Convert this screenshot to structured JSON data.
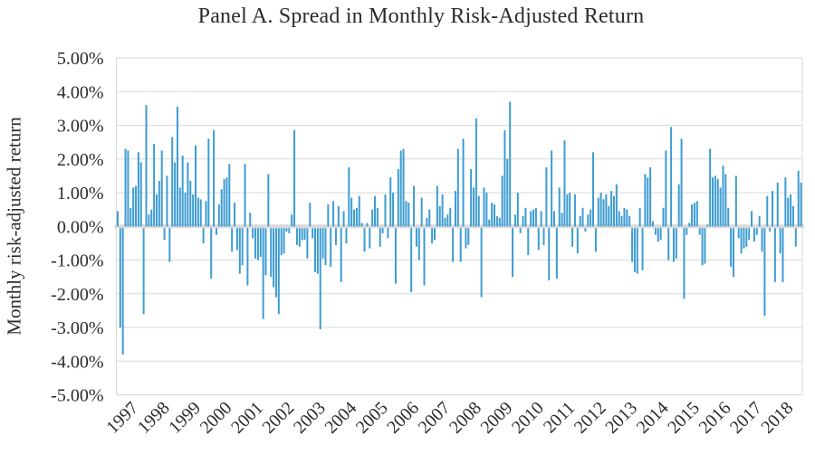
{
  "title": "Panel A. Spread in Monthly Risk-Adjusted Return",
  "chart_data": {
    "type": "bar",
    "title": "Panel A. Spread in Monthly Risk-Adjusted Return",
    "xlabel": "",
    "ylabel": "Monthly risk-adjusted return",
    "unit": "percent",
    "ylim": [
      -5,
      5
    ],
    "y_tick_step": 1,
    "y_tick_labels": [
      "5.00%",
      "4.00%",
      "3.00%",
      "2.00%",
      "1.00%",
      "0.00%",
      "-1.00%",
      "-2.00%",
      "-3.00%",
      "-4.00%",
      "-5.00%"
    ],
    "grid": true,
    "legend": false,
    "bar_color": "#3E9CD1",
    "grid_color": "#D9D9D9",
    "axis_color": "#D9D9D9",
    "text_color": "#2B2B2B",
    "x_tick_labels": [
      "1997",
      "1998",
      "1999",
      "2000",
      "2001",
      "2002",
      "2003",
      "2004",
      "2005",
      "2006",
      "2007",
      "2008",
      "2009",
      "2010",
      "2011",
      "2012",
      "2013",
      "2014",
      "2015",
      "2016",
      "2017",
      "2018"
    ],
    "series_name": "Monthly risk-adjusted return spread (%)",
    "monthly_values_by_year": [
      {
        "year": "1997",
        "values": [
          0.45,
          -2.95,
          -3.75,
          2.3,
          2.25,
          0.55,
          1.15,
          1.2,
          2.2,
          1.9,
          -2.55,
          3.6
        ]
      },
      {
        "year": "1998",
        "values": [
          0.35,
          0.5,
          2.45,
          0.95,
          1.35,
          2.25,
          -0.35,
          1.5,
          -1.0,
          2.65,
          1.9,
          3.55
        ]
      },
      {
        "year": "1999",
        "values": [
          1.15,
          2.1,
          1.0,
          1.9,
          1.35,
          0.95,
          2.4,
          0.85,
          0.8,
          -0.45,
          0.75,
          2.6
        ]
      },
      {
        "year": "2000",
        "values": [
          -1.5,
          2.85,
          -0.2,
          0.65,
          1.1,
          1.4,
          1.45,
          1.85,
          -0.7,
          0.7,
          -0.65,
          -1.35
        ]
      },
      {
        "year": "2001",
        "values": [
          -1.1,
          1.85,
          -1.7,
          0.4,
          -0.3,
          -0.9,
          -0.95,
          -0.85,
          -2.7,
          -1.4,
          1.55,
          -1.45
        ]
      },
      {
        "year": "2002",
        "values": [
          -1.75,
          -2.05,
          -2.55,
          -0.8,
          -0.75,
          -0.1,
          -0.15,
          0.35,
          2.85,
          -0.5,
          -0.55,
          -0.35
        ]
      },
      {
        "year": "2003",
        "values": [
          -0.35,
          -0.9,
          0.7,
          -0.3,
          -1.3,
          -1.35,
          -3.0,
          -0.9,
          -1.1,
          0.65,
          -1.15,
          0.75
        ]
      },
      {
        "year": "2004",
        "values": [
          -0.5,
          0.6,
          -1.6,
          0.45,
          -0.45,
          1.75,
          0.85,
          0.5,
          0.55,
          0.9,
          0.1,
          -0.7
        ]
      },
      {
        "year": "2005",
        "values": [
          0.1,
          -0.6,
          0.5,
          0.9,
          0.55,
          -0.55,
          -0.15,
          0.95,
          -0.3,
          1.45,
          1.0,
          -1.65
        ]
      },
      {
        "year": "2006",
        "values": [
          1.7,
          2.25,
          2.3,
          0.75,
          0.7,
          -1.9,
          1.2,
          -0.55,
          -0.95,
          0.85,
          -1.7,
          0.25
        ]
      },
      {
        "year": "2007",
        "values": [
          0.5,
          -0.45,
          -0.35,
          1.2,
          0.6,
          0.95,
          0.25,
          0.35,
          0.55,
          -1.0,
          1.05,
          2.3
        ]
      },
      {
        "year": "2008",
        "values": [
          -1.0,
          2.6,
          -0.6,
          -0.5,
          1.7,
          1.15,
          3.2,
          0.9,
          -2.05,
          1.15,
          1.0,
          0.2
        ]
      },
      {
        "year": "2009",
        "values": [
          0.7,
          0.65,
          0.3,
          0.25,
          1.5,
          2.85,
          2.0,
          3.7,
          -1.45,
          0.35,
          1.0,
          -0.15
        ]
      },
      {
        "year": "2010",
        "values": [
          0.3,
          0.55,
          -0.8,
          0.45,
          0.5,
          0.55,
          -0.65,
          0.45,
          -0.5,
          1.75,
          -1.55,
          2.25
        ]
      },
      {
        "year": "2011",
        "values": [
          0.45,
          -1.5,
          1.15,
          0.4,
          2.55,
          0.95,
          1.0,
          -0.55,
          0.95,
          -0.75,
          0.3,
          0.55
        ]
      },
      {
        "year": "2012",
        "values": [
          -0.1,
          0.35,
          0.5,
          2.2,
          -0.7,
          0.85,
          1.0,
          0.8,
          0.95,
          0.6,
          1.05,
          0.9
        ]
      },
      {
        "year": "2013",
        "values": [
          1.25,
          0.45,
          0.3,
          0.55,
          0.5,
          0.3,
          -1.0,
          -1.3,
          -1.35,
          0.55,
          -1.25,
          1.55
        ]
      },
      {
        "year": "2014",
        "values": [
          1.45,
          1.75,
          0.15,
          -0.2,
          -0.4,
          -0.35,
          0.55,
          2.25,
          -0.95,
          2.95,
          -1.0,
          -0.9
        ]
      },
      {
        "year": "2015",
        "values": [
          1.25,
          2.6,
          -2.1,
          -0.2,
          0.1,
          0.65,
          0.7,
          0.75,
          -0.2,
          -1.1,
          -1.05,
          0.05
        ]
      },
      {
        "year": "2016",
        "values": [
          2.3,
          1.45,
          1.5,
          1.4,
          1.15,
          1.8,
          1.55,
          0.55,
          -1.15,
          -1.45,
          1.5,
          -0.3
        ]
      },
      {
        "year": "2017",
        "values": [
          -0.75,
          -0.6,
          -0.55,
          -0.35,
          0.45,
          -0.4,
          -0.2,
          0.3,
          -0.7,
          -2.6,
          0.9,
          -0.1
        ]
      },
      {
        "year": "2018",
        "values": [
          1.05,
          -1.6,
          1.3,
          -0.75,
          -1.6,
          1.45,
          0.85,
          0.95,
          0.6,
          -0.55,
          1.65,
          1.3
        ]
      }
    ]
  }
}
